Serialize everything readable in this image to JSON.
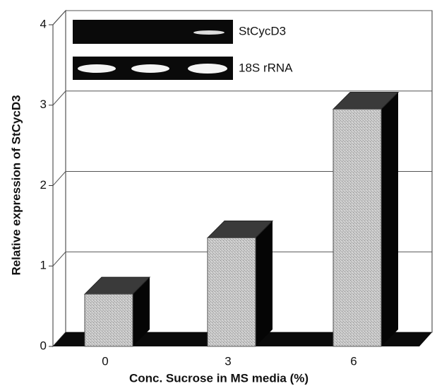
{
  "chart_data": {
    "type": "bar3d",
    "x_label": "Conc. Sucrose in MS media (%)",
    "y_label": "Relative expression of StCycD3",
    "categories": [
      "0",
      "3",
      "6"
    ],
    "values": [
      0.65,
      1.35,
      2.95
    ],
    "ylim": [
      0,
      4
    ],
    "yticks": [
      0,
      1,
      2,
      3,
      4
    ],
    "grid": true,
    "inset_labels": [
      "StCycD3",
      "18S rRNA"
    ]
  }
}
